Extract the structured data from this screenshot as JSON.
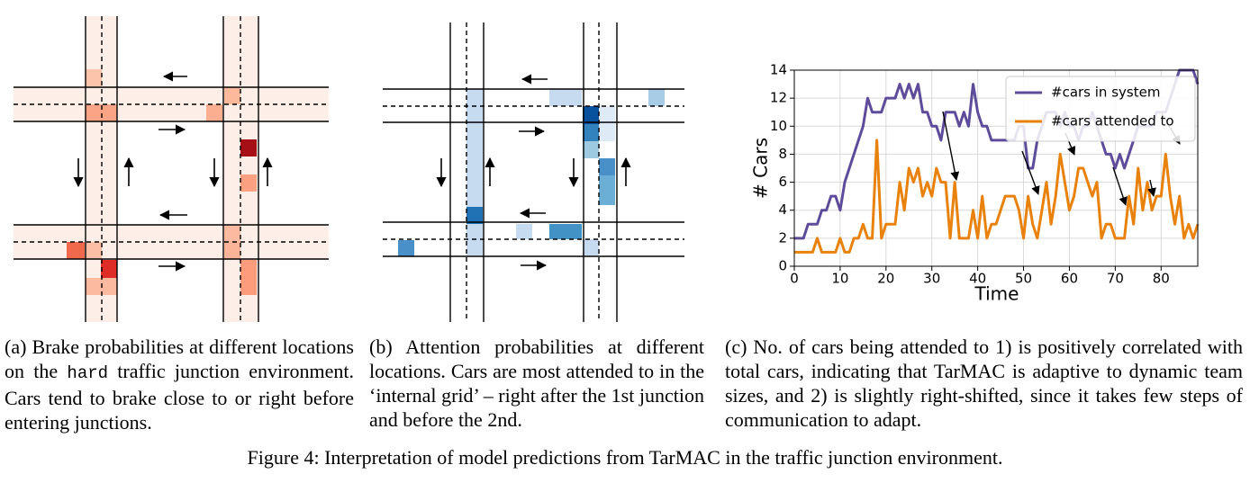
{
  "captions": {
    "a": {
      "before": "(a) Brake probabilities at different locations on the ",
      "code": "hard",
      "after": " traffic junction environment. Cars tend to brake close to or right before entering junctions."
    },
    "b": "(b) Attention probabilities at different locations. Cars are most attended to in the ‘internal grid’ – right after the 1st junction and before the 2nd.",
    "c": "(c) No. of cars being attended to 1) is positively correlated with total cars, indicating that TarMAC is adaptive to dynamic team sizes, and 2) is slightly right-shifted, since it takes few steps of communication to adapt."
  },
  "figure_caption": "Figure 4: Interpretation of model predictions from TarMAC in the traffic junction environment.",
  "chart_data": {
    "type": "line",
    "xlabel": "Time",
    "ylabel": "# Cars",
    "x": [
      0,
      1,
      2,
      3,
      4,
      5,
      6,
      7,
      8,
      9,
      10,
      11,
      12,
      13,
      14,
      15,
      16,
      17,
      18,
      19,
      20,
      21,
      22,
      23,
      24,
      25,
      26,
      27,
      28,
      29,
      30,
      31,
      32,
      33,
      34,
      35,
      36,
      37,
      38,
      39,
      40,
      41,
      42,
      43,
      44,
      45,
      46,
      47,
      48,
      49,
      50,
      51,
      52,
      53,
      54,
      55,
      56,
      57,
      58,
      59,
      60,
      61,
      62,
      63,
      64,
      65,
      66,
      67,
      68,
      69,
      70,
      71,
      72,
      73,
      74,
      75,
      76,
      77,
      78,
      79,
      80,
      81,
      82,
      83,
      84,
      85,
      86,
      87,
      88
    ],
    "series": [
      {
        "name": "#cars in system",
        "color": "#5e4c9b",
        "values": [
          2,
          2,
          2,
          3,
          3,
          3,
          4,
          4,
          5,
          5,
          4,
          6,
          7,
          8,
          9,
          10,
          12,
          11,
          11,
          11,
          12,
          12,
          12,
          13,
          12,
          13,
          12,
          13,
          11,
          11,
          10,
          10,
          9,
          11,
          11,
          11,
          10,
          11,
          10,
          13,
          11,
          10,
          10,
          9,
          9,
          9,
          9,
          9,
          9,
          10,
          10,
          7,
          7,
          9,
          10,
          11,
          11,
          11,
          10,
          11,
          10,
          10,
          9,
          10,
          10,
          11,
          10,
          9,
          8,
          8,
          7,
          8,
          7,
          8,
          9,
          10,
          10,
          10,
          10,
          11,
          11,
          11,
          12,
          13,
          14,
          14,
          14,
          14,
          13
        ]
      },
      {
        "name": "#cars attended to",
        "color": "#e8820c",
        "values": [
          1,
          1,
          1,
          1,
          1,
          2,
          1,
          1,
          1,
          1,
          2,
          1,
          1,
          2,
          2,
          3,
          2,
          2,
          9,
          2,
          3,
          3,
          3,
          6,
          4,
          7,
          6,
          7,
          5,
          6,
          5,
          7,
          6,
          6,
          2,
          6,
          2,
          2,
          2,
          4,
          2,
          5,
          2,
          3,
          3,
          4,
          5,
          5,
          5,
          4,
          2,
          5,
          3,
          2,
          4,
          6,
          3,
          5,
          8,
          6,
          4,
          5,
          7,
          7,
          6,
          5,
          6,
          2,
          3,
          3,
          2,
          2,
          2,
          5,
          3,
          7,
          4,
          6,
          4,
          5,
          5,
          8,
          5,
          3,
          5,
          2,
          3,
          2,
          3
        ]
      }
    ],
    "xlim": [
      0,
      88
    ],
    "ylim": [
      0,
      14
    ],
    "xticks": [
      0,
      10,
      20,
      30,
      40,
      50,
      60,
      70,
      80
    ],
    "yticks": [
      0,
      2,
      4,
      6,
      8,
      10,
      12,
      14
    ],
    "grid": true,
    "legend": "upper right"
  }
}
